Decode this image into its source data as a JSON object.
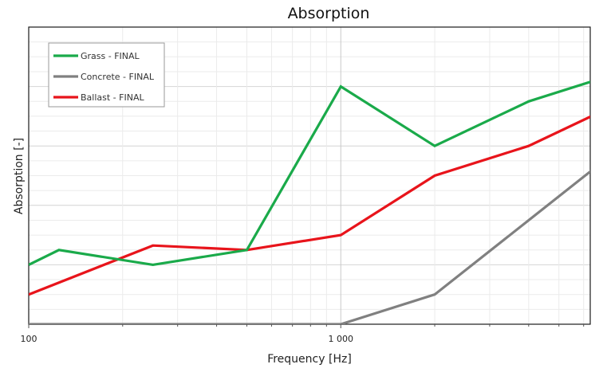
{
  "chart_data": {
    "type": "line",
    "title": "Absorption",
    "xlabel": "Frequency [Hz]",
    "ylabel": "Absorption [-]",
    "x_scale": "log",
    "xlim": [
      100,
      6300
    ],
    "ylim": [
      0,
      1
    ],
    "x_ticks": [
      100,
      1000
    ],
    "x_tick_labels": [
      "100",
      "1 000"
    ],
    "grid": true,
    "legend_position": "top-left",
    "x": [
      100,
      125,
      250,
      500,
      1000,
      2000,
      4000,
      8000
    ],
    "series": [
      {
        "name": "Grass - FINAL",
        "color": "#1aaa4a",
        "x": [
          100,
          125,
          250,
          500,
          1000,
          2000,
          4000,
          8000
        ],
        "values": [
          0.2,
          0.25,
          0.2,
          0.25,
          0.8,
          0.6,
          0.75,
          0.85
        ]
      },
      {
        "name": "Concrete - FINAL",
        "color": "#808080",
        "x": [
          100,
          1000,
          2000,
          4000,
          8000
        ],
        "values": [
          0.0,
          0.0,
          0.1,
          0.35,
          0.6
        ]
      },
      {
        "name": "Ballast - FINAL",
        "color": "#e8141b",
        "x": [
          100,
          250,
          500,
          1000,
          2000,
          4000,
          8000
        ],
        "values": [
          0.1,
          0.265,
          0.25,
          0.3,
          0.5,
          0.6,
          0.75
        ]
      }
    ]
  }
}
